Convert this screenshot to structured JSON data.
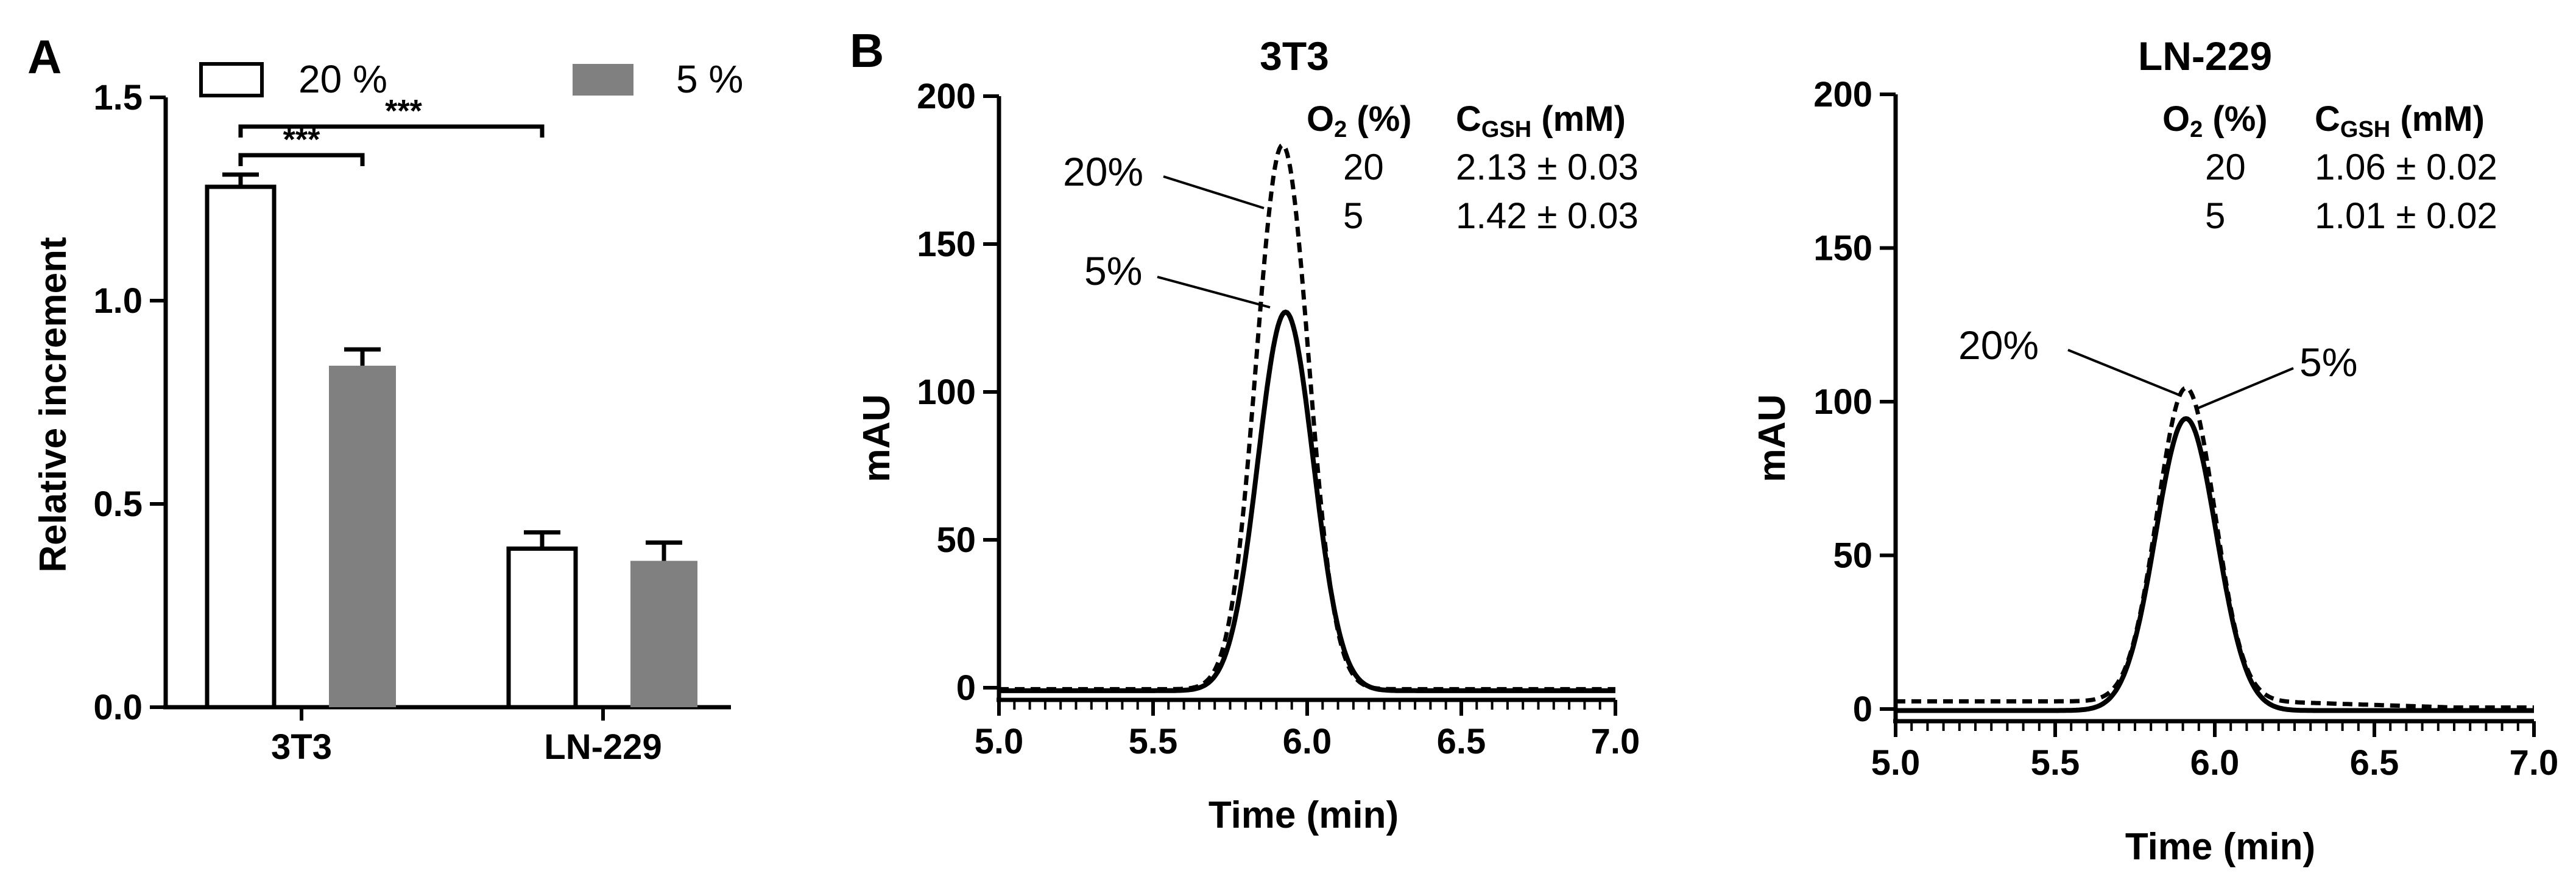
{
  "panels": {
    "a_letter": "A",
    "b_letter": "B"
  },
  "chart_data": [
    {
      "type": "bar",
      "title": "",
      "xlabel": "",
      "ylabel": "Relative increment",
      "ylim": [
        0,
        1.5
      ],
      "yticks": [
        "0.0",
        "0.5",
        "1.0",
        "1.5"
      ],
      "categories": [
        "3T3",
        "LN-229"
      ],
      "series": [
        {
          "name": "20 %",
          "values": [
            1.28,
            0.39
          ],
          "errors": [
            0.03,
            0.04
          ],
          "fill": "#ffffff"
        },
        {
          "name": "5 %",
          "values": [
            0.84,
            0.36
          ],
          "errors": [
            0.04,
            0.045
          ],
          "fill": "#808080"
        }
      ],
      "significance": [
        {
          "label": "***",
          "from": "3T3 20 %",
          "to": "3T3 5 %"
        },
        {
          "label": "***",
          "from": "3T3 20 %",
          "to": "LN-229 20 %"
        }
      ],
      "legend_position": "top",
      "grid": false
    },
    {
      "type": "line",
      "title": "3T3",
      "xlabel": "Time (min)",
      "ylabel": "mAU",
      "xlim": [
        5.0,
        7.0
      ],
      "ylim": [
        0,
        200
      ],
      "xticks": [
        "5.0",
        "5.5",
        "6.0",
        "6.5",
        "7.0"
      ],
      "yticks": [
        "0",
        "50",
        "100",
        "150",
        "200"
      ],
      "series": [
        {
          "name": "20%",
          "style": "dashed",
          "peak_x": 5.92,
          "peak_y": 184,
          "width": 0.085,
          "baseline": -0.5
        },
        {
          "name": "5%",
          "style": "solid",
          "peak_x": 5.93,
          "peak_y": 128,
          "width": 0.09,
          "baseline": -1
        }
      ],
      "table": {
        "col1": "O",
        "col1_sub": "2",
        "col1_rest": " (%)",
        "col2": "C",
        "col2_sub": "GSH",
        "col2_rest": " (mM)",
        "rows": [
          {
            "o2": "20",
            "c": "2.13 ± 0.03"
          },
          {
            "o2": "5",
            "c": "1.42 ± 0.03"
          }
        ]
      },
      "grid": false
    },
    {
      "type": "line",
      "title": "LN-229",
      "xlabel": "Time (min)",
      "ylabel": "mAU",
      "xlim": [
        5.0,
        7.0
      ],
      "ylim": [
        0,
        200
      ],
      "xticks": [
        "5.0",
        "5.5",
        "6.0",
        "6.5",
        "7.0"
      ],
      "yticks": [
        "0",
        "50",
        "100",
        "150",
        "200"
      ],
      "series": [
        {
          "name": "20%",
          "style": "dashed",
          "peak_x": 5.91,
          "peak_y": 102,
          "width": 0.09,
          "baseline": 2.5,
          "baseline_end": 0.5
        },
        {
          "name": "5%",
          "style": "solid",
          "peak_x": 5.91,
          "peak_y": 95,
          "width": 0.095,
          "baseline": -0.5
        }
      ],
      "table": {
        "col1": "O",
        "col1_sub": "2",
        "col1_rest": " (%)",
        "col2": "C",
        "col2_sub": "GSH",
        "col2_rest": " (mM)",
        "rows": [
          {
            "o2": "20",
            "c": "1.06 ± 0.02"
          },
          {
            "o2": "5",
            "c": "1.01 ± 0.02"
          }
        ]
      },
      "grid": false
    }
  ]
}
